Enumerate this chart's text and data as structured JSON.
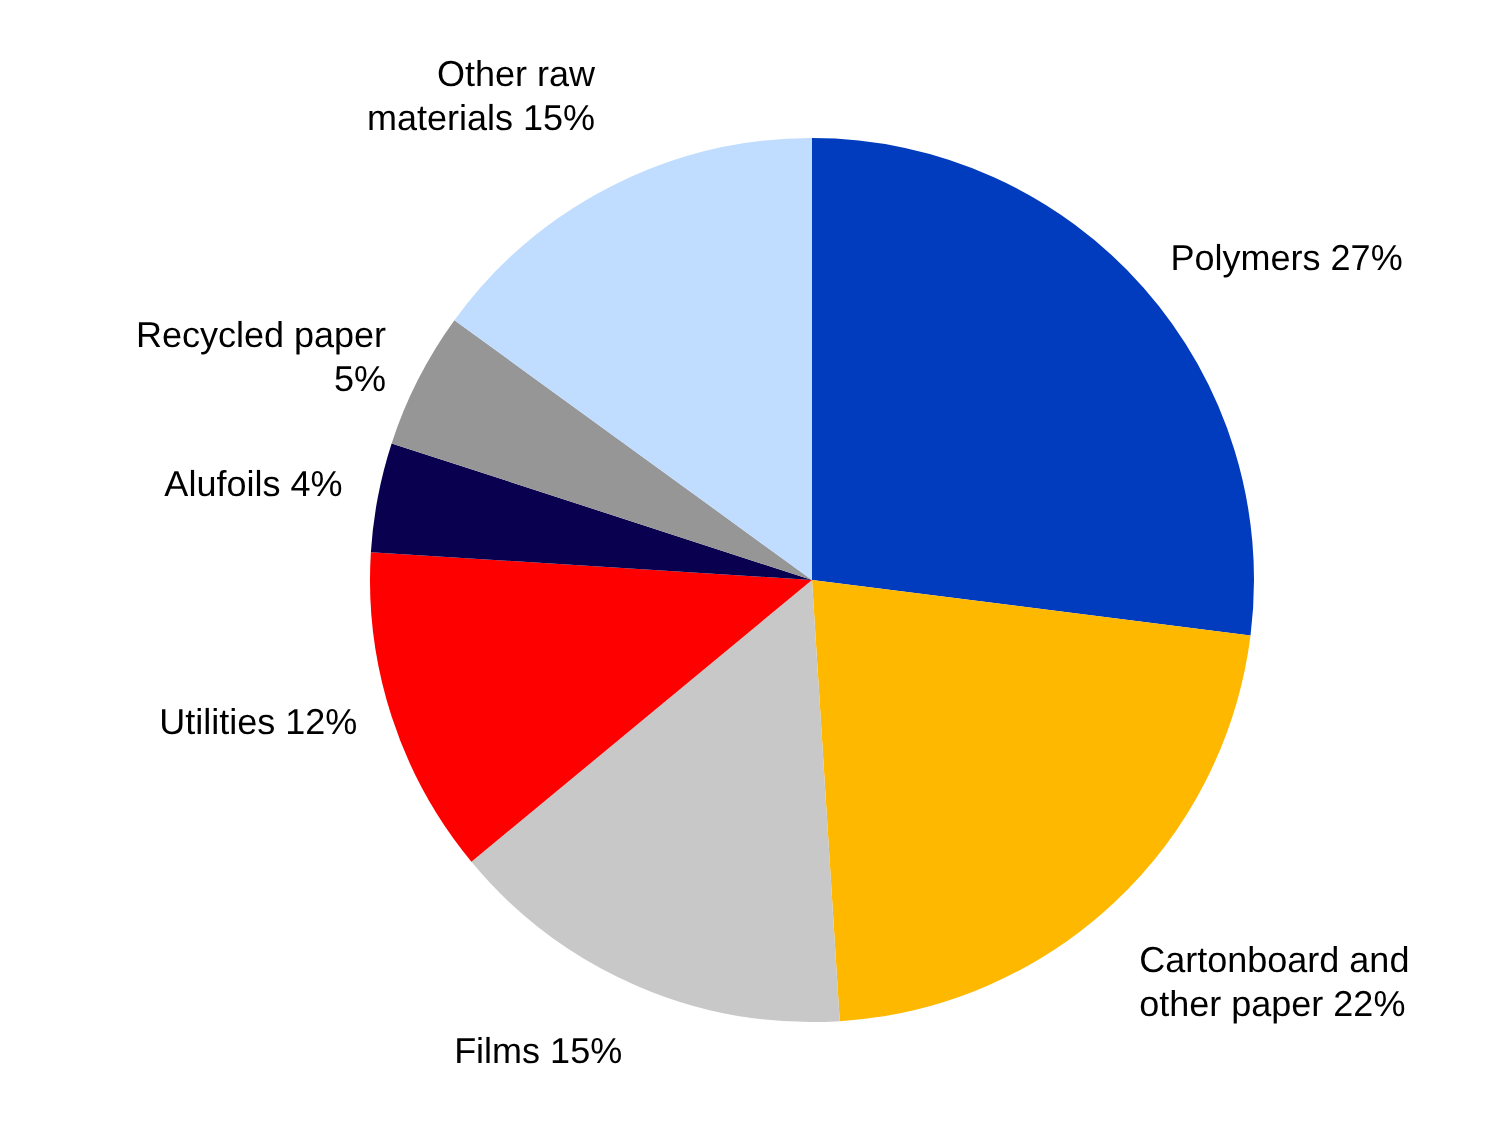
{
  "chart_data": {
    "type": "pie",
    "categories": [
      "Polymers",
      "Cartonboard and other paper",
      "Films",
      "Utilities",
      "Alufoils",
      "Recycled paper",
      "Other raw materials"
    ],
    "values": [
      27,
      22,
      15,
      12,
      4,
      5,
      15
    ],
    "value_labels": [
      "27%",
      "22%",
      "15%",
      "12%",
      "4%",
      "5%",
      "15%"
    ],
    "colors": [
      "#003cbd",
      "#ffb800",
      "#c8c8c8",
      "#ff0000",
      "#0a0050",
      "#969696",
      "#c0dcff"
    ]
  }
}
